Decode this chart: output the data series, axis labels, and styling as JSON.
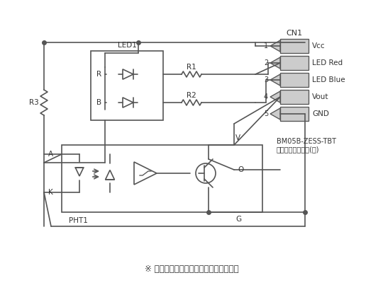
{
  "title": "",
  "bg_color": "#ffffff",
  "line_color": "#555555",
  "text_color": "#333333",
  "fig_width": 5.4,
  "fig_height": 4.03,
  "dpi": 100,
  "note": "※ 入光時ハイレベル、遮光時ローレベル",
  "cn1_label": "CN1",
  "cn1_pins": [
    "1",
    "2",
    "3",
    "4",
    "5"
  ],
  "cn1_signals": [
    "Vcc",
    "LED Red",
    "LED Blue",
    "Vout",
    "GND"
  ],
  "connector_label": "BM05B-ZESS-TBT\n日本圧着端子製造(株)",
  "component_labels": {
    "LED1": "LED1",
    "R": "R",
    "B": "B",
    "R1": "R1",
    "R2": "R2",
    "R3": "R3",
    "PHT1": "PHT1",
    "A": "A",
    "K": "K",
    "V": "V",
    "O": "O",
    "G": "G"
  }
}
